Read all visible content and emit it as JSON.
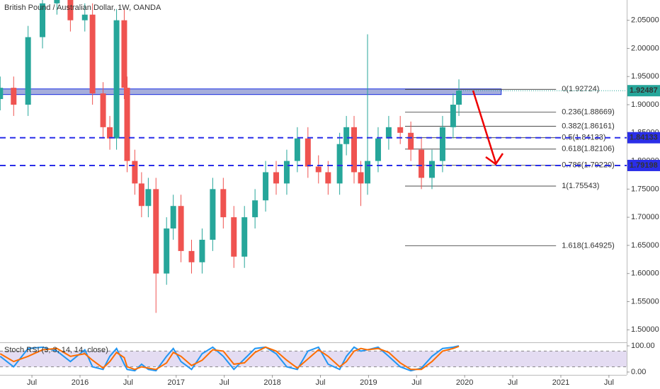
{
  "chart_data": [
    {
      "type": "candlestick",
      "title": "British Pound / Australian Dollar, 1W, OANDA",
      "x": [
        2015.17,
        2015.31,
        2015.46,
        2015.61,
        2015.76,
        2015.9,
        2016.05,
        2016.13,
        2016.24,
        2016.31,
        2016.38,
        2016.46,
        2016.49,
        2016.57,
        2016.64,
        2016.71,
        2016.79,
        2016.9,
        2016.97,
        2017.05,
        2017.16,
        2017.27,
        2017.38,
        2017.49,
        2017.6,
        2017.71,
        2017.82,
        2017.93,
        2018.04,
        2018.15,
        2018.26,
        2018.37,
        2018.48,
        2018.58,
        2018.7,
        2018.77,
        2018.85,
        2018.92,
        2018.99,
        2019.1,
        2019.21,
        2019.33,
        2019.44,
        2019.55,
        2019.66,
        2019.77,
        2019.88,
        2019.94
      ],
      "open": [
        1.91,
        1.93,
        1.9,
        2.02,
        2.08,
        2.09,
        2.05,
        2.06,
        1.92,
        1.86,
        1.84,
        2.05,
        1.93,
        1.8,
        1.76,
        1.72,
        1.75,
        1.6,
        1.68,
        1.72,
        1.64,
        1.62,
        1.66,
        1.75,
        1.7,
        1.63,
        1.7,
        1.73,
        1.78,
        1.76,
        1.8,
        1.84,
        1.79,
        1.78,
        1.76,
        1.83,
        1.86,
        1.78,
        1.76,
        1.8,
        1.84,
        1.86,
        1.85,
        1.82,
        1.77,
        1.8,
        1.86,
        1.9
      ],
      "high": [
        1.95,
        1.95,
        2.04,
        2.1,
        2.11,
        2.11,
        2.08,
        2.08,
        1.94,
        1.88,
        2.07,
        2.07,
        1.95,
        1.82,
        1.78,
        1.77,
        1.77,
        1.7,
        1.74,
        1.74,
        1.66,
        1.68,
        1.77,
        1.77,
        1.72,
        1.72,
        1.75,
        1.8,
        1.8,
        1.82,
        1.86,
        1.86,
        1.81,
        1.8,
        1.85,
        1.88,
        1.88,
        1.8,
        2.025,
        1.86,
        1.88,
        1.88,
        1.87,
        1.84,
        1.82,
        1.88,
        1.92,
        1.945
      ],
      "low": [
        1.89,
        1.88,
        1.88,
        2.0,
        2.06,
        2.03,
        2.03,
        1.9,
        1.84,
        1.82,
        1.82,
        1.91,
        1.78,
        1.74,
        1.7,
        1.7,
        1.53,
        1.58,
        1.66,
        1.62,
        1.6,
        1.6,
        1.64,
        1.68,
        1.61,
        1.61,
        1.68,
        1.71,
        1.74,
        1.74,
        1.78,
        1.77,
        1.76,
        1.74,
        1.74,
        1.81,
        1.76,
        1.72,
        1.74,
        1.78,
        1.82,
        1.83,
        1.8,
        1.75,
        1.75,
        1.78,
        1.84,
        1.88
      ],
      "close": [
        1.93,
        1.9,
        2.02,
        2.08,
        2.09,
        2.05,
        2.06,
        1.92,
        1.86,
        1.84,
        2.05,
        1.93,
        1.8,
        1.76,
        1.72,
        1.75,
        1.6,
        1.68,
        1.72,
        1.64,
        1.62,
        1.66,
        1.75,
        1.7,
        1.63,
        1.7,
        1.73,
        1.78,
        1.76,
        1.8,
        1.84,
        1.79,
        1.78,
        1.76,
        1.83,
        1.86,
        1.78,
        1.76,
        1.8,
        1.84,
        1.86,
        1.85,
        1.82,
        1.77,
        1.8,
        1.86,
        1.9,
        1.925
      ],
      "up_color": "#26a69a",
      "down_color": "#ef5350",
      "xlim": [
        2015.168,
        2021.685
      ],
      "xticks": [
        {
          "value": 2015.5,
          "label": "Jul"
        },
        2016,
        {
          "value": 2016.5,
          "label": "Jul"
        },
        2017,
        {
          "value": 2017.5,
          "label": "Jul"
        },
        2018,
        {
          "value": 2018.5,
          "label": "Jul"
        },
        2019,
        {
          "value": 2019.5,
          "label": "Jul"
        },
        2020,
        {
          "value": 2020.5,
          "label": "Jul"
        },
        2021,
        {
          "value": 2021.5,
          "label": "Jul"
        }
      ],
      "ylim": [
        1.479,
        2.086
      ],
      "yticks": [
        {
          "value": 1.5,
          "label": "1.50000"
        },
        {
          "value": 1.55,
          "label": "1.55000"
        },
        {
          "value": 1.6,
          "label": "1.60000"
        },
        {
          "value": 1.65,
          "label": "1.65000"
        },
        {
          "value": 1.7,
          "label": "1.70000"
        },
        {
          "value": 1.75,
          "label": "1.75000"
        },
        {
          "value": 1.8,
          "label": "1.80000"
        },
        {
          "value": 1.85,
          "label": "1.85000"
        },
        {
          "value": 1.9,
          "label": "1.90000"
        },
        {
          "value": 1.95,
          "label": "1.95000"
        },
        {
          "value": 2.0,
          "label": "2.00000"
        },
        {
          "value": 2.05,
          "label": "2.05000"
        }
      ],
      "current_price": 1.92487,
      "current_price_color": "#26a69a",
      "horizontal_lines": [
        1.84133,
        1.79198
      ],
      "line_color": "#2a2ee8",
      "zone": {
        "low": 1.918,
        "high": 1.928,
        "x_end": 2020.38,
        "color": "#5c6bc0"
      },
      "fib_x": [
        2019.38,
        2020.95
      ],
      "fib_levels": [
        {
          "value": 1.92724,
          "label": "0(1.92724)"
        },
        {
          "value": 1.88669,
          "label": "0.236(1.88669)"
        },
        {
          "value": 1.86161,
          "label": "0.382(1.86161)"
        },
        {
          "value": 1.84133,
          "label": "0.5(1.84133)"
        },
        {
          "value": 1.82106,
          "label": "0.618(1.82106)"
        },
        {
          "value": 1.7922,
          "label": "0.786(1.79220)"
        },
        {
          "value": 1.75543,
          "label": "1(1.75543)"
        },
        {
          "value": 1.64925,
          "label": "1.618(1.64925)"
        }
      ]
    },
    {
      "type": "line",
      "title": "Stoch RSI (3, 3, 14, 14, close)",
      "ylim": [
        -10.8,
        110.8
      ],
      "yticks": [
        {
          "value": 100,
          "label": "100.00"
        },
        {
          "value": 0,
          "label": "0.00"
        }
      ],
      "band": [
        20,
        80
      ],
      "band_color": "#9575cd",
      "series": [
        {
          "color": "#2196f3",
          "values": [
            60,
            20,
            90,
            95,
            80,
            40,
            85,
            20,
            10,
            60,
            90,
            30,
            10,
            5,
            30,
            10,
            5,
            60,
            90,
            40,
            10,
            70,
            95,
            60,
            10,
            50,
            90,
            95,
            70,
            20,
            10,
            80,
            95,
            30,
            10,
            60,
            95,
            80,
            85,
            95,
            60,
            20,
            5,
            15,
            60,
            90,
            95,
            100
          ]
        },
        {
          "color": "#ff6d00",
          "values": [
            70,
            40,
            60,
            85,
            90,
            60,
            70,
            45,
            15,
            40,
            75,
            55,
            20,
            10,
            20,
            15,
            10,
            35,
            75,
            60,
            25,
            45,
            85,
            80,
            30,
            35,
            75,
            95,
            80,
            45,
            15,
            50,
            85,
            60,
            20,
            40,
            80,
            90,
            85,
            90,
            75,
            35,
            10,
            10,
            40,
            80,
            90,
            98
          ]
        }
      ]
    }
  ]
}
